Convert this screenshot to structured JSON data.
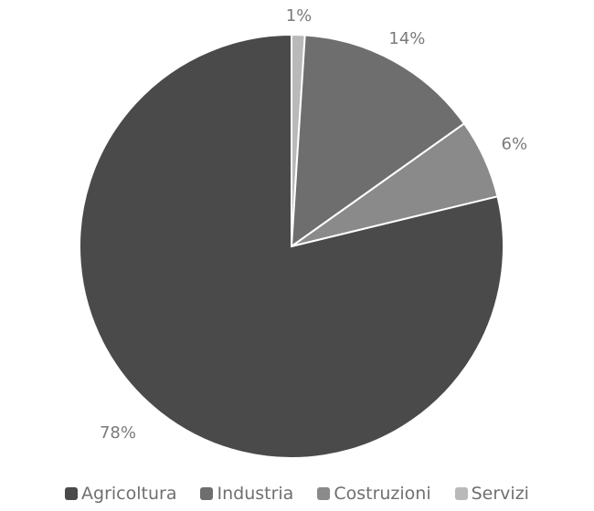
{
  "chart_data": {
    "type": "pie",
    "title": "",
    "categories": [
      "Agricoltura",
      "Industria",
      "Costruzioni",
      "Servizi"
    ],
    "values": [
      78,
      14,
      6,
      1
    ],
    "labels": [
      "78%",
      "14%",
      "6%",
      "1%"
    ],
    "colors": [
      "#4a4a4a",
      "#6e6e6e",
      "#8a8a8a",
      "#b9b9b9"
    ],
    "start_angle_deg": 0,
    "direction": "counterclockwise-from-top",
    "legend": {
      "position": "bottom"
    }
  }
}
